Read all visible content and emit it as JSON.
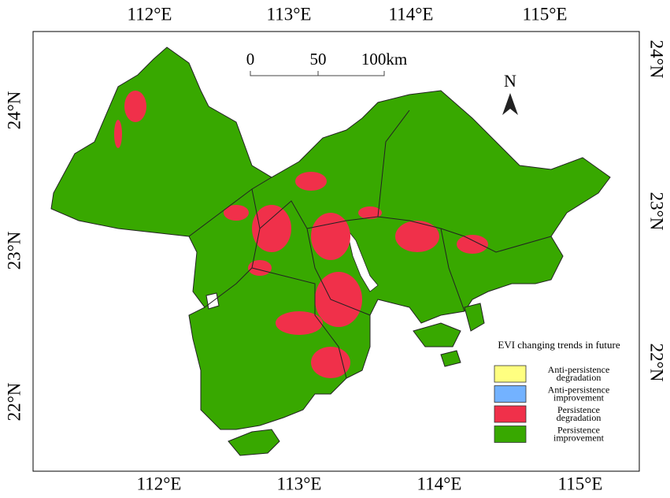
{
  "axes": {
    "top": [
      "112°E",
      "113°E",
      "114°E",
      "115°E"
    ],
    "bottom": [
      "112°E",
      "113°E",
      "114°E",
      "115°E"
    ],
    "left": [
      "24°N",
      "23°N",
      "22°N"
    ],
    "right": [
      "24°N",
      "23°N",
      "22°N"
    ]
  },
  "scale_bar": {
    "labels": [
      "0",
      "50",
      "100km"
    ]
  },
  "north_label": "N",
  "legend": {
    "title": "EVI changing trends in future",
    "items": [
      {
        "lines": [
          "Anti-persistence",
          "degradation"
        ],
        "color": "#ffff80"
      },
      {
        "lines": [
          "Anti-persistence",
          "improvement"
        ],
        "color": "#73b2ff"
      },
      {
        "lines": [
          "Persistence",
          "degradation"
        ],
        "color": "#f0304a"
      },
      {
        "lines": [
          "Persistence",
          "improvement"
        ],
        "color": "#38a800"
      }
    ]
  }
}
